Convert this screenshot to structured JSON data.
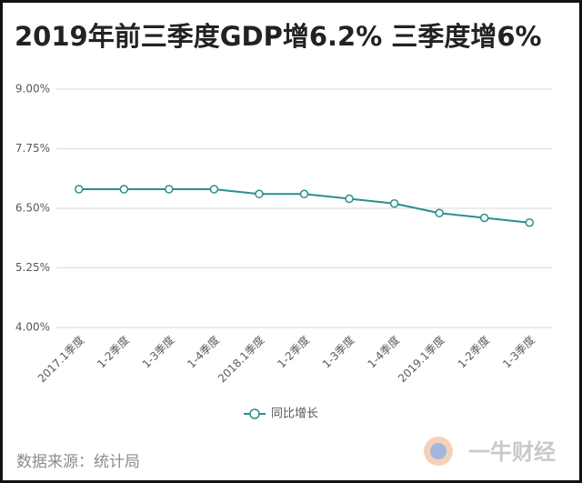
{
  "chart_data": {
    "type": "line",
    "title": "2019年前三季度GDP增6.2% 三季度增6%",
    "categories": [
      "2017.1季度",
      "1-2季度",
      "1-3季度",
      "1-4季度",
      "2018.1季度",
      "1-2季度",
      "1-3季度",
      "1-4季度",
      "2019.1季度",
      "1-2季度",
      "1-3季度"
    ],
    "series": [
      {
        "name": "同比增长",
        "color": "#2a8f8a",
        "values": [
          6.9,
          6.9,
          6.9,
          6.9,
          6.8,
          6.8,
          6.7,
          6.6,
          6.4,
          6.3,
          6.2
        ]
      }
    ],
    "ylim": [
      4,
      9
    ],
    "yticks": [
      {
        "value": 4,
        "label": "4.00%"
      },
      {
        "value": 5.25,
        "label": "5.25%"
      },
      {
        "value": 6.5,
        "label": "6.50%"
      },
      {
        "value": 7.75,
        "label": "7.75%"
      },
      {
        "value": 9,
        "label": "9.00%"
      }
    ],
    "grid": true,
    "legend": "bottom",
    "source": "数据来源：统计局",
    "watermark": "一牛财经"
  }
}
